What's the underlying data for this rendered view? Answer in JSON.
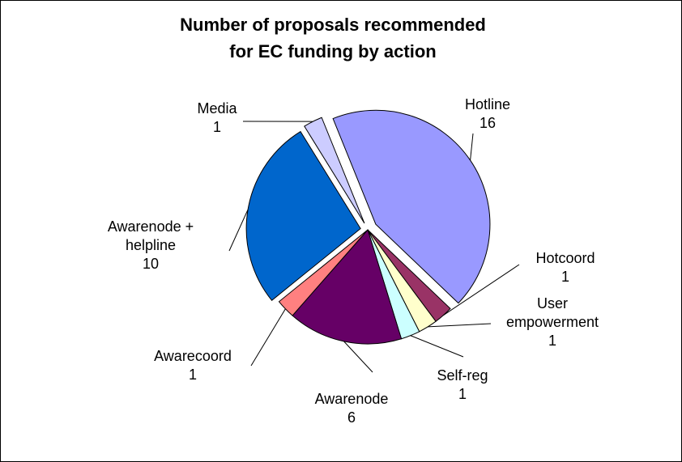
{
  "chart_data": {
    "type": "pie",
    "title_lines": [
      "Number of proposals recommended",
      "for EC funding by action"
    ],
    "legend": "none",
    "slices": [
      {
        "name": "Hotline",
        "value": 16,
        "color": "#9999ff",
        "name_lines": [
          "Hotline"
        ],
        "value_text": "16"
      },
      {
        "name": "Hotcoord",
        "value": 1,
        "color": "#993366",
        "name_lines": [
          "Hotcoord"
        ],
        "value_text": "1"
      },
      {
        "name": "User empowerment",
        "value": 1,
        "color": "#ffffcc",
        "name_lines": [
          "User",
          "empowerment"
        ],
        "value_text": "1"
      },
      {
        "name": "Self-reg",
        "value": 1,
        "color": "#ccffff",
        "name_lines": [
          "Self-reg"
        ],
        "value_text": "1"
      },
      {
        "name": "Awarenode",
        "value": 6,
        "color": "#660066",
        "name_lines": [
          "Awarenode"
        ],
        "value_text": "6"
      },
      {
        "name": "Awarecoord",
        "value": 1,
        "color": "#ff8080",
        "name_lines": [
          "Awarecoord"
        ],
        "value_text": "1"
      },
      {
        "name": "Awarenode + helpline",
        "value": 10,
        "color": "#0066cc",
        "name_lines": [
          "Awarenode +",
          "helpline"
        ],
        "value_text": "10"
      },
      {
        "name": "Media",
        "value": 1,
        "color": "#ccccff",
        "name_lines": [
          "Media"
        ],
        "value_text": "1"
      }
    ]
  }
}
